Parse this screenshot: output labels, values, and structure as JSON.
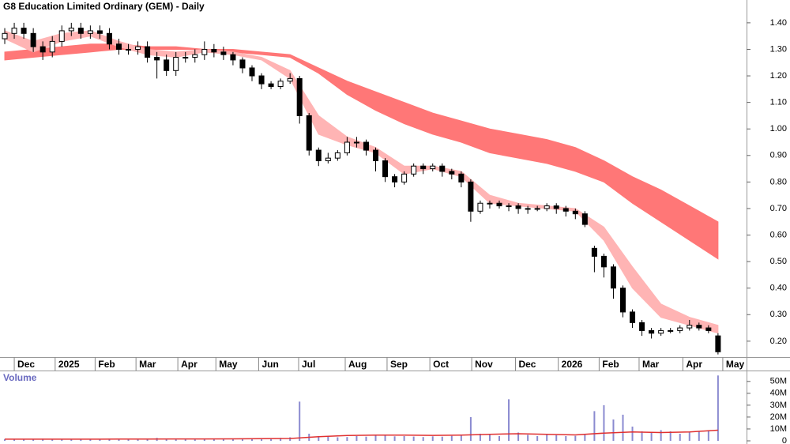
{
  "chart_data": [
    {
      "type": "candlestick",
      "title": "G8 Education Limited Ordinary (GEM) - Daily",
      "x": [
        0,
        1,
        2,
        3,
        4,
        5,
        6,
        7,
        8,
        9,
        10,
        11,
        12,
        13,
        14,
        15,
        16,
        17,
        18,
        19,
        20,
        21,
        22,
        23,
        24,
        25,
        26,
        27,
        28,
        29,
        30,
        31,
        32,
        33,
        34,
        35,
        36,
        37,
        38,
        39,
        40,
        41,
        42,
        43,
        44,
        45,
        46,
        47,
        48,
        49,
        50,
        51,
        52,
        53,
        54,
        55,
        56,
        57,
        58,
        59,
        60,
        61,
        62,
        63,
        64,
        65,
        66,
        67,
        68,
        69,
        70,
        71,
        72,
        73,
        74,
        75
      ],
      "open": [
        1.34,
        1.36,
        1.38,
        1.36,
        1.31,
        1.29,
        1.33,
        1.37,
        1.38,
        1.36,
        1.37,
        1.36,
        1.32,
        1.3,
        1.3,
        1.31,
        1.27,
        1.26,
        1.22,
        1.27,
        1.27,
        1.28,
        1.3,
        1.29,
        1.28,
        1.26,
        1.23,
        1.2,
        1.17,
        1.16,
        1.18,
        1.19,
        1.05,
        0.92,
        0.88,
        0.89,
        0.91,
        0.95,
        0.95,
        0.92,
        0.88,
        0.82,
        0.8,
        0.83,
        0.86,
        0.85,
        0.86,
        0.84,
        0.83,
        0.8,
        0.69,
        0.72,
        0.72,
        0.71,
        0.71,
        0.7,
        0.7,
        0.7,
        0.71,
        0.7,
        0.69,
        0.68,
        0.55,
        0.52,
        0.48,
        0.4,
        0.31,
        0.27,
        0.24,
        0.23,
        0.24,
        0.24,
        0.25,
        0.26,
        0.25,
        0.22
      ],
      "high": [
        1.38,
        1.4,
        1.4,
        1.38,
        1.33,
        1.35,
        1.39,
        1.4,
        1.4,
        1.39,
        1.39,
        1.38,
        1.34,
        1.32,
        1.33,
        1.33,
        1.29,
        1.28,
        1.29,
        1.29,
        1.3,
        1.33,
        1.32,
        1.31,
        1.29,
        1.27,
        1.24,
        1.21,
        1.18,
        1.19,
        1.21,
        1.2,
        1.06,
        0.93,
        0.91,
        0.92,
        0.97,
        0.97,
        0.96,
        0.93,
        0.89,
        0.83,
        0.84,
        0.87,
        0.87,
        0.87,
        0.87,
        0.85,
        0.84,
        0.81,
        0.73,
        0.73,
        0.73,
        0.72,
        0.72,
        0.71,
        0.71,
        0.72,
        0.72,
        0.71,
        0.7,
        0.69,
        0.56,
        0.53,
        0.49,
        0.41,
        0.32,
        0.28,
        0.25,
        0.25,
        0.25,
        0.26,
        0.28,
        0.27,
        0.26,
        0.23
      ],
      "low": [
        1.32,
        1.34,
        1.34,
        1.29,
        1.26,
        1.27,
        1.31,
        1.35,
        1.34,
        1.34,
        1.34,
        1.3,
        1.28,
        1.28,
        1.28,
        1.25,
        1.19,
        1.2,
        1.2,
        1.25,
        1.25,
        1.26,
        1.27,
        1.26,
        1.24,
        1.21,
        1.18,
        1.15,
        1.15,
        1.15,
        1.17,
        1.02,
        0.9,
        0.86,
        0.87,
        0.88,
        0.9,
        0.93,
        0.9,
        0.84,
        0.8,
        0.78,
        0.79,
        0.82,
        0.83,
        0.84,
        0.82,
        0.81,
        0.78,
        0.65,
        0.68,
        0.7,
        0.7,
        0.69,
        0.68,
        0.68,
        0.69,
        0.69,
        0.68,
        0.67,
        0.66,
        0.63,
        0.46,
        0.44,
        0.36,
        0.29,
        0.25,
        0.22,
        0.21,
        0.22,
        0.23,
        0.23,
        0.24,
        0.24,
        0.23,
        0.15
      ],
      "close": [
        1.36,
        1.38,
        1.36,
        1.31,
        1.29,
        1.33,
        1.37,
        1.38,
        1.36,
        1.37,
        1.36,
        1.32,
        1.3,
        1.3,
        1.31,
        1.27,
        1.26,
        1.22,
        1.27,
        1.27,
        1.28,
        1.3,
        1.29,
        1.28,
        1.26,
        1.23,
        1.2,
        1.17,
        1.16,
        1.18,
        1.19,
        1.05,
        0.92,
        0.88,
        0.89,
        0.91,
        0.95,
        0.95,
        0.92,
        0.88,
        0.82,
        0.8,
        0.83,
        0.86,
        0.85,
        0.86,
        0.84,
        0.83,
        0.8,
        0.69,
        0.72,
        0.72,
        0.71,
        0.71,
        0.7,
        0.7,
        0.7,
        0.71,
        0.7,
        0.69,
        0.68,
        0.64,
        0.52,
        0.48,
        0.4,
        0.31,
        0.27,
        0.24,
        0.23,
        0.24,
        0.24,
        0.25,
        0.26,
        0.25,
        0.24,
        0.16
      ],
      "band_x": [
        0,
        3,
        6,
        9,
        12,
        15,
        18,
        21,
        24,
        27,
        30,
        33,
        36,
        39,
        42,
        45,
        48,
        51,
        54,
        57,
        60,
        63,
        66,
        69,
        72,
        75
      ],
      "bands": [
        {
          "color": "#ff7777",
          "upper": [
            1.29,
            1.3,
            1.31,
            1.32,
            1.32,
            1.31,
            1.31,
            1.3,
            1.3,
            1.29,
            1.28,
            1.23,
            1.18,
            1.14,
            1.1,
            1.06,
            1.03,
            1.0,
            0.98,
            0.96,
            0.93,
            0.88,
            0.82,
            0.77,
            0.71,
            0.65
          ],
          "lower": [
            1.26,
            1.27,
            1.28,
            1.29,
            1.3,
            1.3,
            1.3,
            1.3,
            1.29,
            1.28,
            1.27,
            1.21,
            1.13,
            1.07,
            1.02,
            0.98,
            0.95,
            0.91,
            0.89,
            0.87,
            0.84,
            0.8,
            0.72,
            0.65,
            0.58,
            0.51
          ]
        },
        {
          "color": "#ffb4b4",
          "upper": [
            1.37,
            1.33,
            1.36,
            1.37,
            1.33,
            1.3,
            1.29,
            1.3,
            1.29,
            1.27,
            1.22,
            1.05,
            0.97,
            0.93,
            0.86,
            0.86,
            0.84,
            0.75,
            0.72,
            0.71,
            0.7,
            0.63,
            0.48,
            0.34,
            0.29,
            0.26
          ],
          "lower": [
            1.34,
            1.29,
            1.33,
            1.35,
            1.31,
            1.28,
            1.27,
            1.29,
            1.28,
            1.26,
            1.19,
            0.98,
            0.94,
            0.91,
            0.83,
            0.85,
            0.82,
            0.72,
            0.71,
            0.7,
            0.69,
            0.58,
            0.4,
            0.29,
            0.26,
            0.23
          ]
        }
      ],
      "xlim": [
        -0.5,
        78
      ],
      "ylim": [
        0.14,
        1.486
      ],
      "xticks": [
        {
          "value": 1,
          "label": "Dec"
        },
        {
          "value": 5.3,
          "label": "2025"
        },
        {
          "value": 9.5,
          "label": "Feb"
        },
        {
          "value": 13.8,
          "label": "Mar"
        },
        {
          "value": 18.2,
          "label": "Apr"
        },
        {
          "value": 22.2,
          "label": "May"
        },
        {
          "value": 26.7,
          "label": "Jun"
        },
        {
          "value": 30.9,
          "label": "Jul"
        },
        {
          "value": 35.8,
          "label": "Aug"
        },
        {
          "value": 40.2,
          "label": "Sep"
        },
        {
          "value": 44.7,
          "label": "Oct"
        },
        {
          "value": 49.1,
          "label": "Nov"
        },
        {
          "value": 53.7,
          "label": "Dec"
        },
        {
          "value": 58.2,
          "label": "2026"
        },
        {
          "value": 62.5,
          "label": "Feb"
        },
        {
          "value": 66.7,
          "label": "Mar"
        },
        {
          "value": 71.3,
          "label": "Apr"
        },
        {
          "value": 75.5,
          "label": "May"
        }
      ],
      "yticks": [
        {
          "value": 1.4,
          "label": "1.40"
        },
        {
          "value": 1.3,
          "label": "1.30"
        },
        {
          "value": 1.2,
          "label": "1.20"
        },
        {
          "value": 1.1,
          "label": "1.10"
        },
        {
          "value": 1,
          "label": "1.00"
        },
        {
          "value": 0.9,
          "label": "0.90"
        },
        {
          "value": 0.8,
          "label": "0.80"
        },
        {
          "value": 0.7,
          "label": "0.70"
        },
        {
          "value": 0.6,
          "label": "0.60"
        },
        {
          "value": 0.5,
          "label": "0.50"
        },
        {
          "value": 0.4,
          "label": "0.40"
        },
        {
          "value": 0.3,
          "label": "0.30"
        },
        {
          "value": 0.2,
          "label": "0.20"
        }
      ]
    },
    {
      "type": "bar",
      "title": "Volume",
      "color": "#8a8ad0",
      "x": [
        0,
        1,
        2,
        3,
        4,
        5,
        6,
        7,
        8,
        9,
        10,
        11,
        12,
        13,
        14,
        15,
        16,
        17,
        18,
        19,
        20,
        21,
        22,
        23,
        24,
        25,
        26,
        27,
        28,
        29,
        30,
        31,
        32,
        33,
        34,
        35,
        36,
        37,
        38,
        39,
        40,
        41,
        42,
        43,
        44,
        45,
        46,
        47,
        48,
        49,
        50,
        51,
        52,
        53,
        54,
        55,
        56,
        57,
        58,
        59,
        60,
        61,
        62,
        63,
        64,
        65,
        66,
        67,
        68,
        69,
        70,
        71,
        72,
        73,
        74,
        75
      ],
      "values": [
        1.5,
        1.2,
        1.4,
        1.3,
        1.8,
        1.2,
        1.1,
        1.5,
        1.3,
        1.2,
        1.6,
        1.9,
        1.4,
        1.3,
        1.7,
        1.5,
        2.5,
        1.8,
        1.6,
        1.4,
        1.2,
        1.5,
        1.6,
        1.4,
        1.7,
        2.0,
        1.8,
        1.9,
        2.2,
        2.5,
        3.0,
        33,
        6,
        4,
        3.5,
        3,
        3.2,
        4,
        3.5,
        5,
        4.5,
        3.8,
        4,
        3.6,
        3.2,
        3.8,
        3.5,
        4.2,
        5,
        20,
        6,
        5,
        4,
        35,
        7,
        5,
        4,
        5.5,
        4.8,
        4,
        4.2,
        5,
        25,
        30,
        18,
        22,
        12,
        8,
        7,
        9,
        8,
        6,
        7,
        8,
        9,
        55
      ],
      "ma": {
        "color": "#e03030",
        "x": [
          0,
          3,
          6,
          9,
          12,
          15,
          18,
          21,
          24,
          27,
          30,
          33,
          36,
          39,
          42,
          45,
          48,
          51,
          54,
          57,
          60,
          63,
          66,
          69,
          72,
          75
        ],
        "values": [
          1.4,
          1.4,
          1.4,
          1.4,
          1.5,
          1.5,
          1.6,
          1.6,
          1.7,
          1.8,
          2.0,
          3.5,
          4.5,
          4.8,
          4.8,
          4.6,
          4.8,
          5.5,
          6.0,
          5.5,
          5.0,
          6.5,
          7.5,
          7.0,
          7.5,
          9.0
        ]
      },
      "xlim": [
        -0.5,
        78
      ],
      "ylim": [
        0,
        58.5
      ],
      "yticks": [
        {
          "value": 50,
          "label": "50M"
        },
        {
          "value": 40,
          "label": "40M"
        },
        {
          "value": 30,
          "label": "30M"
        },
        {
          "value": 20,
          "label": "20M"
        },
        {
          "value": 10,
          "label": "10M"
        },
        0
      ]
    }
  ]
}
